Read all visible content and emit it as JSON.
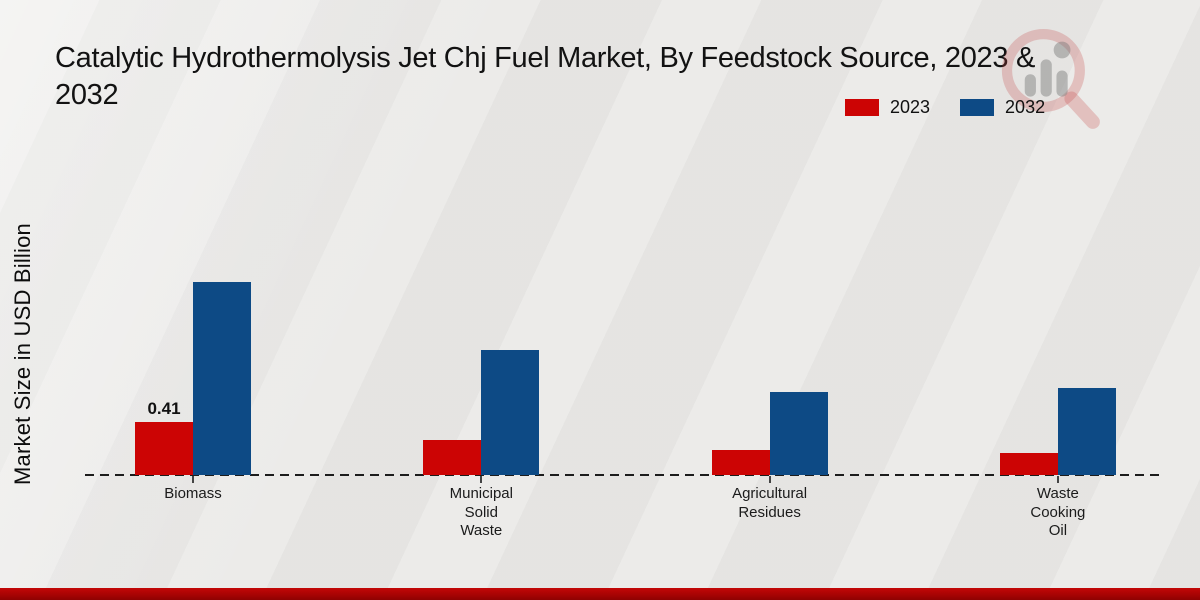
{
  "title": {
    "full": "Catalytic Hydrothermolysis Jet Chj Fuel Market, By Feedstock Source, 2023 & 2032",
    "lines": [
      "Catalytic Hydrothermolysis Jet Chj Fuel Market, By Feedstock Source, 2023 &",
      "2032"
    ]
  },
  "y_axis_label": "Market Size in USD Billion",
  "legend": {
    "position": "top-right",
    "items": [
      {
        "label": "2023",
        "color": "#cc0404"
      },
      {
        "label": "2032",
        "color": "#0d4a85"
      }
    ]
  },
  "watermark_icon": "magnifier-bar-chart-logo",
  "chart_data": {
    "type": "bar",
    "title": "Catalytic Hydrothermolysis Jet Chj Fuel Market, By Feedstock Source, 2023 & 2032",
    "categories": [
      "Biomass",
      "Municipal Solid Waste",
      "Agricultural Residues",
      "Waste Cooking Oil"
    ],
    "category_label_lines": [
      [
        "Biomass"
      ],
      [
        "Municipal",
        "Solid",
        "Waste"
      ],
      [
        "Agricultural",
        "Residues"
      ],
      [
        "Waste",
        "Cooking",
        "Oil"
      ]
    ],
    "series": [
      {
        "name": "2023",
        "color": "#cc0404",
        "values": [
          0.41,
          0.27,
          0.19,
          0.17
        ]
      },
      {
        "name": "2032",
        "color": "#0d4a85",
        "values": [
          1.49,
          0.97,
          0.64,
          0.67
        ]
      }
    ],
    "data_labels": [
      {
        "series": "2023",
        "category": "Biomass",
        "text": "0.41"
      }
    ],
    "xlabel": "",
    "ylabel": "Market Size in USD Billion",
    "ylim": [
      0,
      1.6
    ],
    "grid": false,
    "y_ticks_visible": false,
    "baseline_style": "dashed",
    "legend_position": "top-right"
  },
  "footer": {
    "band_color": "#a30303"
  }
}
